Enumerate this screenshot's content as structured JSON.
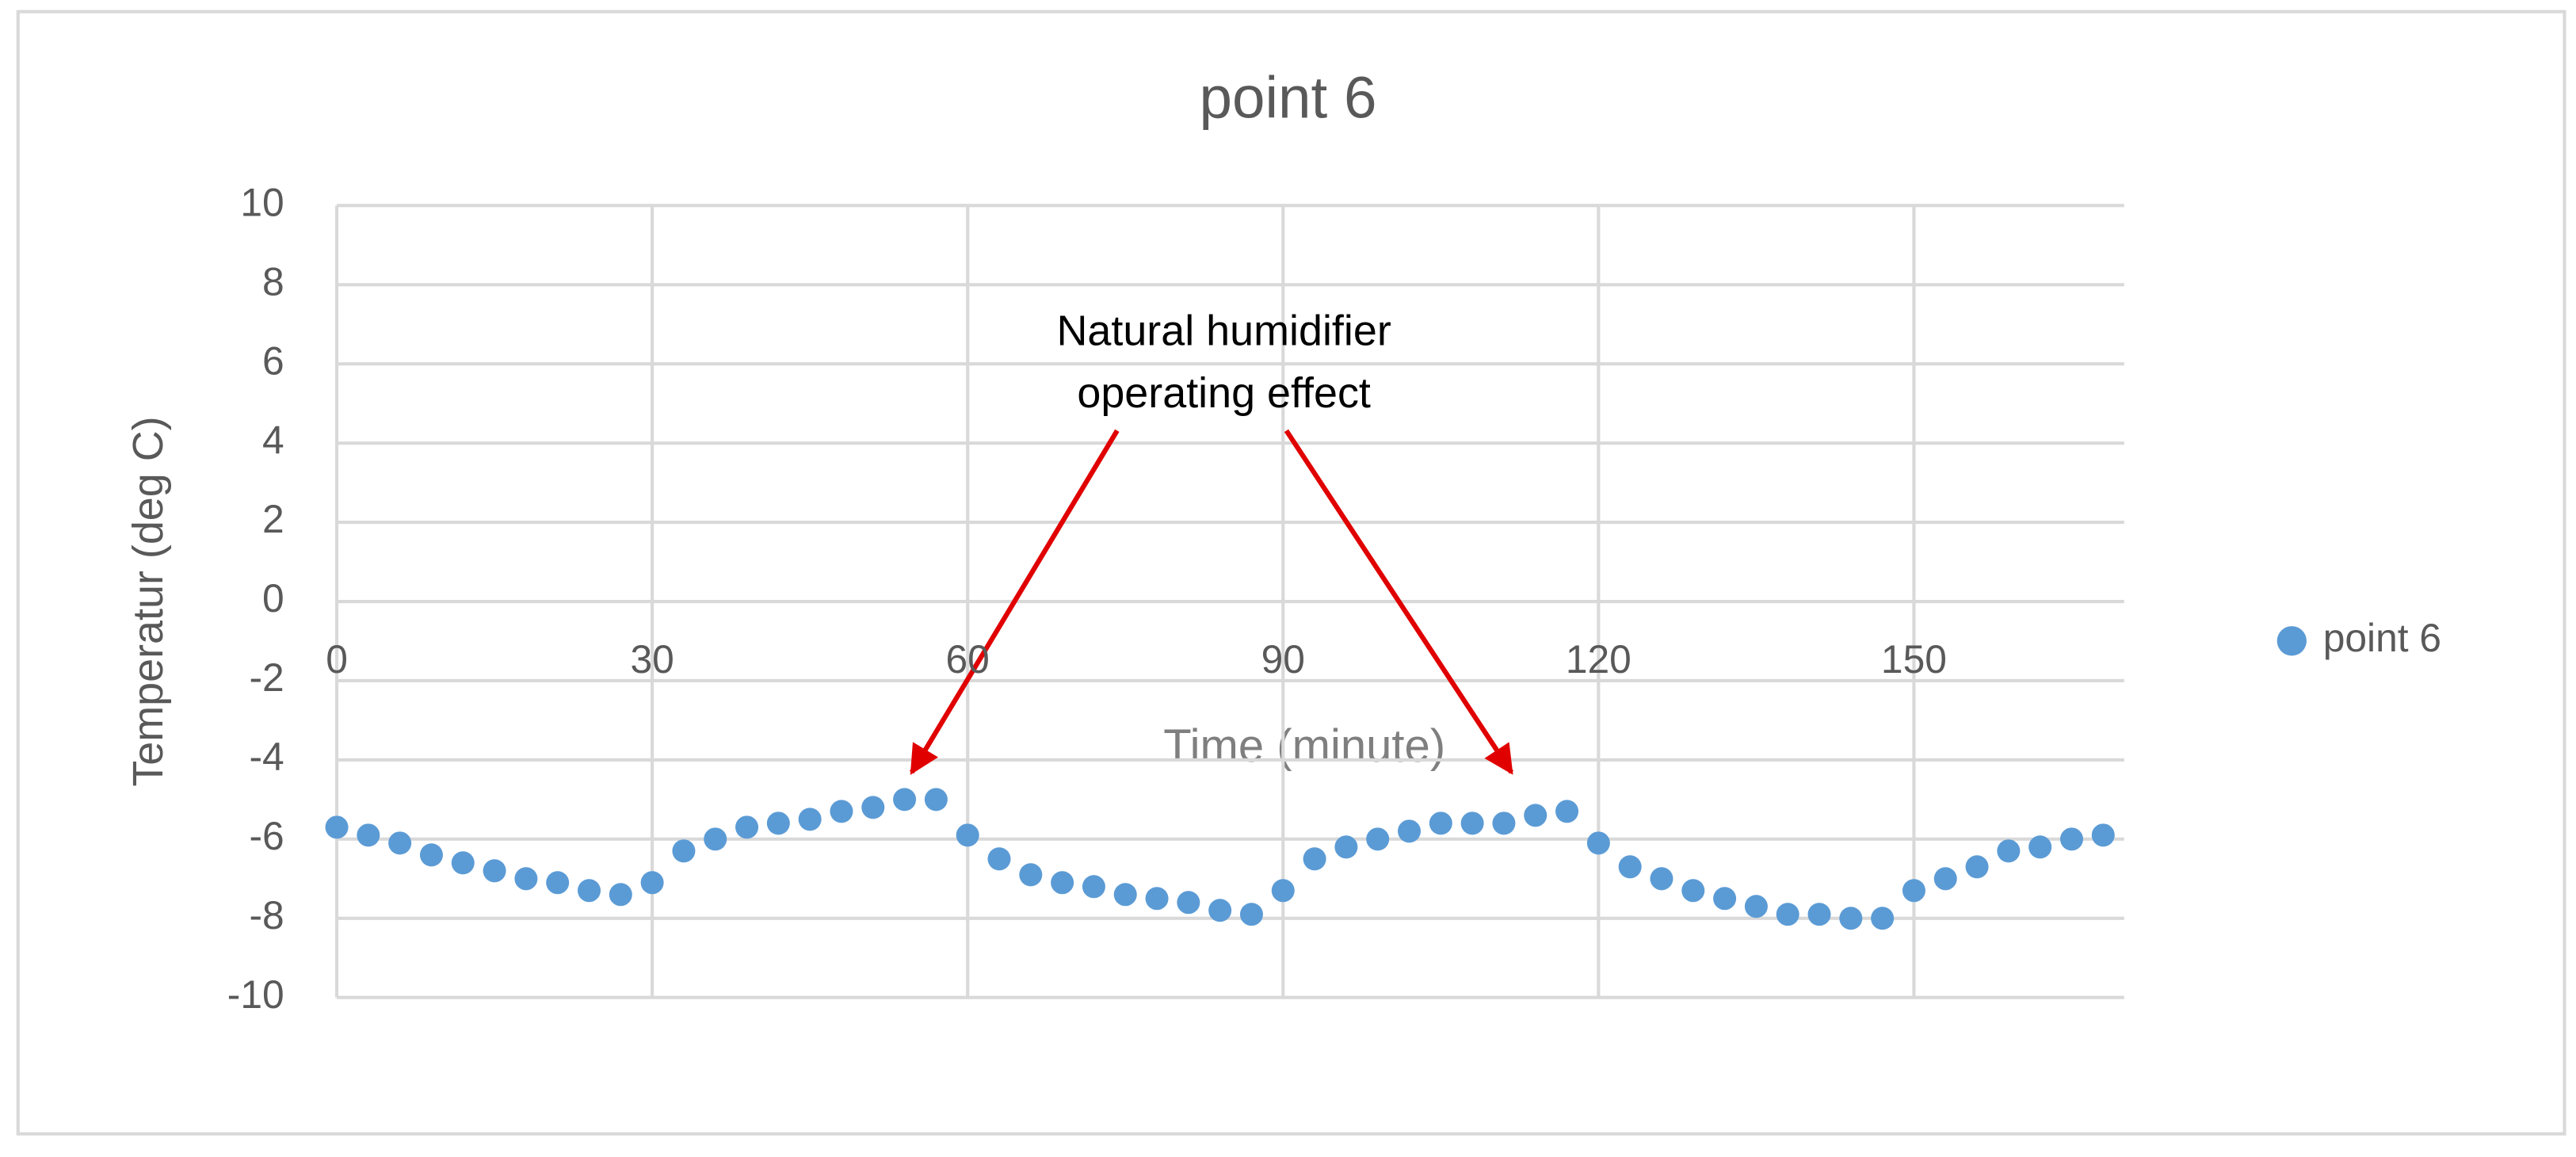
{
  "chart_data": {
    "type": "scatter",
    "title": "point 6",
    "x_label": "Time (minute)",
    "y_label": "Temperatur (deg C)",
    "annotation": [
      "Natural humidifier",
      "operating effect"
    ],
    "xlim": [
      0,
      170
    ],
    "xticks": [
      0,
      30,
      60,
      90,
      120,
      150
    ],
    "ylim": [
      -10,
      10
    ],
    "yticks": [
      -10,
      -8,
      -6,
      -4,
      -2,
      0,
      2,
      4,
      6,
      8,
      10
    ],
    "grid": true,
    "legend": "right",
    "series": [
      {
        "name": "point 6",
        "color": "#5b9bd5",
        "x": [
          0,
          3,
          6,
          9,
          12,
          15,
          18,
          21,
          24,
          27,
          30,
          33,
          36,
          39,
          42,
          45,
          48,
          51,
          54,
          57,
          60,
          63,
          66,
          69,
          72,
          75,
          78,
          81,
          84,
          87,
          90,
          93,
          96,
          99,
          102,
          105,
          108,
          111,
          114,
          117,
          120,
          123,
          126,
          129,
          132,
          135,
          138,
          141,
          144,
          147,
          150,
          153,
          156,
          159,
          162,
          165,
          168
        ],
        "values": [
          -5.7,
          -5.9,
          -6.1,
          -6.4,
          -6.6,
          -6.8,
          -7.0,
          -7.1,
          -7.3,
          -7.4,
          -7.1,
          -6.3,
          -6.0,
          -5.7,
          -5.6,
          -5.5,
          -5.3,
          -5.2,
          -5.0,
          -5.0,
          -5.9,
          -6.5,
          -6.9,
          -7.1,
          -7.2,
          -7.4,
          -7.5,
          -7.6,
          -7.8,
          -7.9,
          -7.3,
          -6.5,
          -6.2,
          -6.0,
          -5.8,
          -5.6,
          -5.6,
          -5.6,
          -5.4,
          -5.3,
          -6.1,
          -6.7,
          -7.0,
          -7.3,
          -7.5,
          -7.7,
          -7.9,
          -7.9,
          -8.0,
          -8.0,
          -7.3,
          -7.0,
          -6.7,
          -6.3,
          -6.2,
          -6.0,
          -5.9
        ]
      }
    ]
  }
}
